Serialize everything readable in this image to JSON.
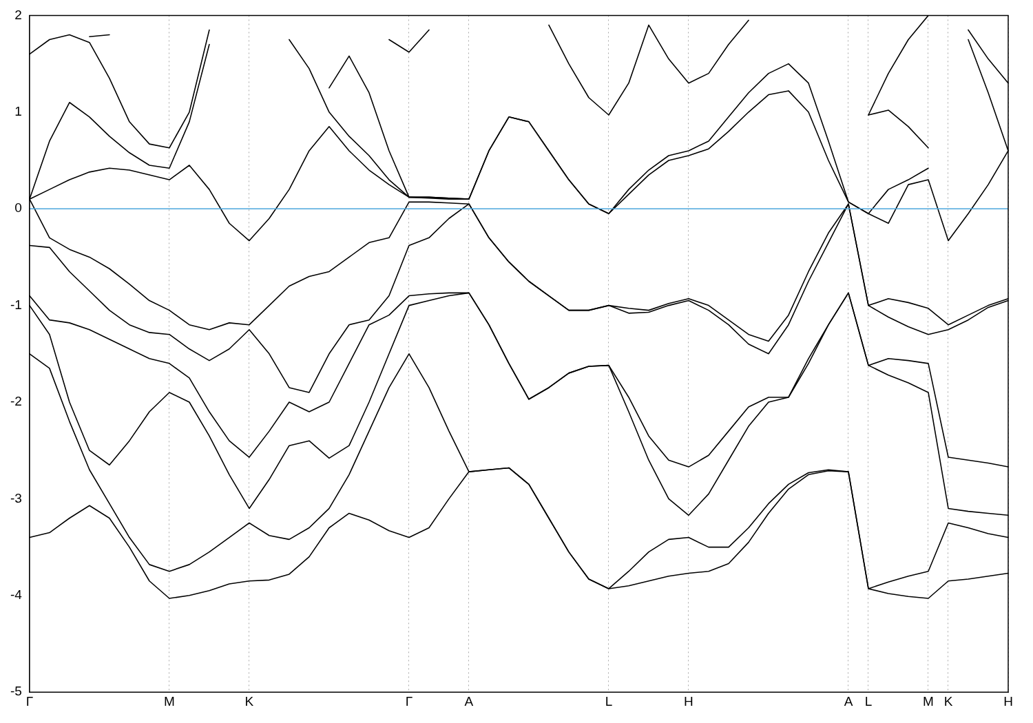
{
  "chart_data": {
    "type": "line",
    "categories": [
      "Γ",
      null,
      null,
      null,
      null,
      null,
      null,
      "M",
      null,
      null,
      null,
      "K",
      null,
      null,
      null,
      null,
      null,
      null,
      null,
      "Γ",
      null,
      null,
      "A",
      null,
      null,
      null,
      null,
      null,
      null,
      "L",
      null,
      null,
      null,
      "H",
      null,
      null,
      null,
      null,
      null,
      null,
      null,
      "A",
      "L",
      null,
      null,
      "M",
      "K",
      null,
      null,
      "H"
    ],
    "ylim": [
      -5,
      2
    ],
    "yticks": [
      -5,
      -4,
      -3,
      -2,
      -1,
      0,
      1,
      2
    ],
    "grid": "x",
    "legend": false,
    "marker": "none",
    "line_style": "solid",
    "ref_lines": [
      {
        "axis": "y",
        "value": 0,
        "color": "#4ba6dc"
      }
    ],
    "series": [
      {
        "color": "#000000",
        "values": [
          -3.4,
          -3.35,
          -3.2,
          -3.07,
          -3.2,
          -3.5,
          -3.85,
          -4.03,
          -4.0,
          -3.95,
          -3.88,
          -3.85,
          -3.84,
          -3.78,
          -3.6,
          -3.3,
          -3.15,
          -3.22,
          -3.33,
          -3.4,
          -3.3,
          -3.0,
          -2.72,
          -2.7,
          -2.68,
          -2.85,
          -3.2,
          -3.55,
          -3.83,
          -3.93,
          -3.9,
          -3.85,
          -3.8,
          -3.77,
          -3.75,
          -3.67,
          -3.45,
          -3.15,
          -2.9,
          -2.75,
          -2.71,
          -2.72,
          -3.93,
          -3.98,
          -4.01,
          -4.03,
          -3.85,
          -3.83,
          -3.8,
          -3.77
        ]
      },
      {
        "color": "#000000",
        "values": [
          -1.5,
          -1.65,
          -2.2,
          -2.7,
          -3.05,
          -3.4,
          -3.68,
          -3.75,
          -3.68,
          -3.55,
          -3.4,
          -3.25,
          -3.38,
          -3.42,
          -3.3,
          -3.1,
          -2.75,
          -2.3,
          -1.85,
          -1.5,
          -1.85,
          -2.3,
          -2.72,
          -2.7,
          -2.68,
          -2.85,
          -3.2,
          -3.55,
          -3.83,
          -3.93,
          -3.75,
          -3.55,
          -3.42,
          -3.4,
          -3.5,
          -3.5,
          -3.3,
          -3.05,
          -2.85,
          -2.73,
          -2.7,
          -2.72,
          -3.93,
          -3.86,
          -3.8,
          -3.75,
          -3.25,
          -3.3,
          -3.36,
          -3.4
        ]
      },
      {
        "color": "#000000",
        "values": [
          -1.0,
          -1.3,
          -2.0,
          -2.5,
          -2.65,
          -2.4,
          -2.1,
          -1.9,
          -2.0,
          -2.35,
          -2.75,
          -3.1,
          -2.8,
          -2.45,
          -2.4,
          -2.58,
          -2.45,
          -2.0,
          -1.5,
          -1.0,
          -0.95,
          -0.9,
          -0.87,
          -1.2,
          -1.6,
          -1.97,
          -1.85,
          -1.7,
          -1.63,
          -1.62,
          -2.1,
          -2.6,
          -3.0,
          -3.17,
          -2.95,
          -2.6,
          -2.25,
          -2.0,
          -1.95,
          -1.6,
          -1.2,
          -0.87,
          -1.62,
          -1.72,
          -1.8,
          -1.9,
          -3.1,
          -3.13,
          -3.15,
          -3.17
        ]
      },
      {
        "color": "#000000",
        "values": [
          -0.9,
          -1.15,
          -1.18,
          -1.25,
          -1.35,
          -1.45,
          -1.55,
          -1.6,
          -1.75,
          -2.1,
          -2.4,
          -2.57,
          -2.3,
          -2.0,
          -2.1,
          -2.0,
          -1.6,
          -1.2,
          -1.1,
          -0.9,
          -0.88,
          -0.87,
          -0.87,
          -1.2,
          -1.6,
          -1.97,
          -1.85,
          -1.7,
          -1.63,
          -1.62,
          -1.95,
          -2.35,
          -2.6,
          -2.67,
          -2.55,
          -2.3,
          -2.05,
          -1.95,
          -1.95,
          -1.55,
          -1.2,
          -0.87,
          -1.62,
          -1.55,
          -1.57,
          -1.6,
          -2.57,
          -2.6,
          -2.63,
          -2.67
        ]
      },
      {
        "color": "#000000",
        "values": [
          -0.38,
          -0.4,
          -0.65,
          -0.85,
          -1.05,
          -1.2,
          -1.28,
          -1.3,
          -1.45,
          -1.57,
          -1.45,
          -1.25,
          -1.5,
          -1.85,
          -1.9,
          -1.5,
          -1.2,
          -1.15,
          -0.9,
          -0.38,
          -0.3,
          -0.1,
          0.05,
          -0.3,
          -0.55,
          -0.75,
          -0.9,
          -1.05,
          -1.05,
          -1.0,
          -1.08,
          -1.07,
          -1.0,
          -0.95,
          -1.05,
          -1.2,
          -1.4,
          -1.5,
          -1.2,
          -0.75,
          -0.35,
          0.05,
          -1.0,
          -1.12,
          -1.22,
          -1.3,
          -1.25,
          -1.15,
          -1.02,
          -0.95
        ]
      },
      {
        "color": "#000000",
        "values": [
          0.1,
          -0.3,
          -0.42,
          -0.5,
          -0.62,
          -0.78,
          -0.95,
          -1.05,
          -1.2,
          -1.25,
          -1.18,
          -1.2,
          -1.0,
          -0.8,
          -0.7,
          -0.65,
          -0.5,
          -0.35,
          -0.3,
          0.07,
          0.07,
          0.06,
          0.05,
          -0.3,
          -0.55,
          -0.75,
          -0.9,
          -1.05,
          -1.05,
          -1.0,
          -1.03,
          -1.05,
          -0.98,
          -0.93,
          -1.0,
          -1.15,
          -1.3,
          -1.37,
          -1.1,
          -0.65,
          -0.25,
          0.05,
          -1.0,
          -0.93,
          -0.97,
          -1.03,
          -1.2,
          -1.1,
          -1.0,
          -0.93
        ]
      },
      {
        "color": "#000000",
        "values": [
          0.1,
          0.2,
          0.3,
          0.38,
          0.42,
          0.4,
          0.35,
          0.3,
          0.45,
          0.2,
          -0.15,
          -0.33,
          -0.1,
          0.2,
          0.6,
          0.85,
          0.6,
          0.4,
          0.25,
          0.12,
          0.11,
          0.1,
          0.1,
          0.6,
          0.95,
          0.9,
          0.6,
          0.3,
          0.05,
          -0.05,
          0.15,
          0.35,
          0.5,
          0.55,
          0.62,
          0.8,
          1.0,
          1.18,
          1.22,
          1.0,
          0.5,
          0.07,
          -0.05,
          -0.15,
          0.25,
          0.3,
          -0.33,
          -0.05,
          0.25,
          0.6
        ]
      },
      {
        "color": "#000000",
        "values": [
          0.1,
          0.7,
          1.1,
          0.95,
          0.75,
          0.58,
          0.45,
          0.42,
          0.9,
          1.7,
          null,
          null,
          null,
          1.75,
          1.45,
          1.0,
          0.75,
          0.55,
          0.3,
          0.12,
          0.12,
          0.11,
          0.1,
          0.6,
          0.95,
          0.9,
          0.6,
          0.3,
          0.05,
          -0.05,
          0.2,
          0.4,
          0.55,
          0.6,
          0.7,
          0.95,
          1.2,
          1.4,
          1.5,
          1.3,
          0.7,
          0.07,
          -0.05,
          0.2,
          0.3,
          0.42,
          null,
          1.75,
          1.2,
          0.6
        ]
      },
      {
        "color": "#000000",
        "values": [
          1.6,
          1.75,
          1.8,
          1.72,
          1.35,
          0.9,
          0.67,
          0.63,
          1.0,
          1.85,
          null,
          null,
          null,
          null,
          null,
          1.25,
          1.58,
          1.2,
          0.6,
          0.12,
          0.12,
          0.11,
          0.1,
          null,
          null,
          null,
          1.9,
          1.5,
          1.15,
          0.97,
          1.3,
          1.9,
          1.55,
          1.3,
          1.4,
          1.7,
          1.95,
          null,
          null,
          null,
          null,
          null,
          0.97,
          1.02,
          0.85,
          0.63,
          null,
          1.85,
          1.55,
          1.3
        ]
      },
      {
        "color": "#000000",
        "values": [
          null,
          null,
          null,
          1.78,
          1.8,
          null,
          null,
          null,
          null,
          null,
          null,
          null,
          null,
          null,
          null,
          null,
          null,
          null,
          1.75,
          1.62,
          1.85,
          null,
          null,
          null,
          null,
          null,
          null,
          null,
          null,
          null,
          null,
          null,
          null,
          null,
          null,
          null,
          null,
          null,
          null,
          null,
          null,
          null,
          0.97,
          1.4,
          1.75,
          2.0,
          null,
          null,
          null,
          null
        ]
      }
    ]
  }
}
